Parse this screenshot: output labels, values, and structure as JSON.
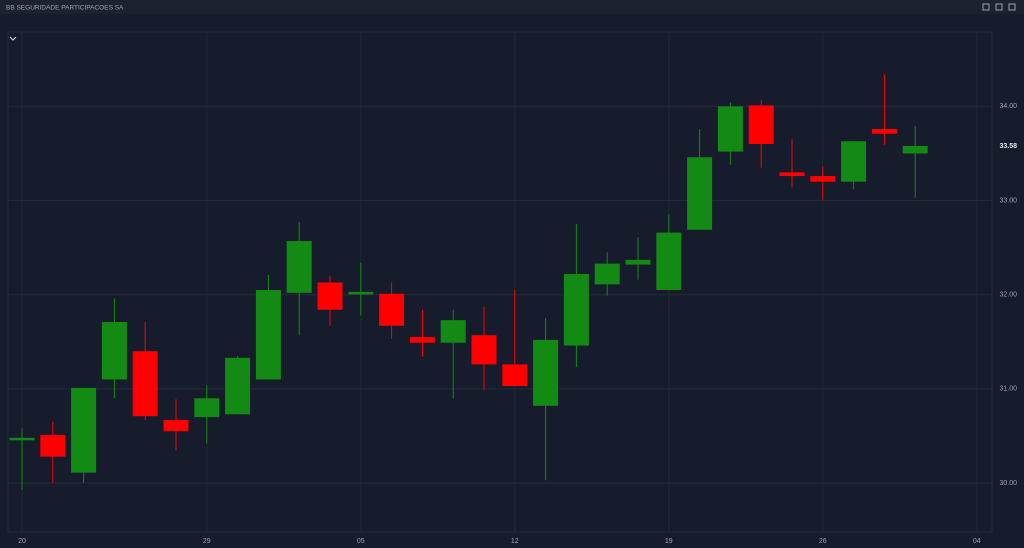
{
  "chart_data": {
    "type": "candlestick",
    "title": "BB SEGURIDADE PARTICIPACOES SA",
    "categories": [
      "20",
      null,
      null,
      null,
      null,
      null,
      "29",
      null,
      null,
      null,
      null,
      "05",
      null,
      null,
      null,
      null,
      "12",
      null,
      null,
      null,
      null,
      "19",
      null,
      null,
      null,
      null,
      "26",
      null,
      null,
      null,
      null,
      "04"
    ],
    "open": [
      30.48,
      30.51,
      30.11,
      31.1,
      31.4,
      30.67,
      30.7,
      30.73,
      31.1,
      32.02,
      32.13,
      32.01,
      32.01,
      31.55,
      31.49,
      31.57,
      31.26,
      30.82,
      31.46,
      32.11,
      32.32,
      32.05,
      32.69,
      33.52,
      34.01,
      33.3,
      33.26,
      33.2,
      33.76,
      33.5,
      null,
      null
    ],
    "high": [
      30.58,
      30.65,
      31.01,
      31.96,
      31.71,
      30.89,
      31.04,
      31.35,
      32.21,
      32.77,
      32.2,
      32.34,
      32.13,
      31.84,
      31.84,
      31.87,
      32.05,
      31.75,
      32.75,
      32.45,
      32.61,
      32.85,
      33.76,
      34.04,
      34.07,
      33.65,
      33.36,
      33.63,
      34.34,
      33.79,
      null,
      null
    ],
    "low": [
      29.93,
      30.0,
      30.0,
      30.9,
      30.67,
      30.35,
      30.42,
      30.73,
      31.1,
      31.57,
      31.67,
      31.78,
      31.53,
      31.34,
      30.9,
      30.99,
      31.03,
      30.03,
      31.23,
      31.99,
      32.16,
      32.05,
      32.69,
      33.38,
      33.35,
      33.14,
      33.01,
      33.12,
      33.59,
      33.03,
      null,
      null
    ],
    "close": [
      30.48,
      30.28,
      31.01,
      31.71,
      30.71,
      30.55,
      30.9,
      31.33,
      32.05,
      32.57,
      31.84,
      32.03,
      31.67,
      31.49,
      31.73,
      31.26,
      31.03,
      31.52,
      32.22,
      32.33,
      32.37,
      32.66,
      33.46,
      34.0,
      33.6,
      33.26,
      33.2,
      33.63,
      33.71,
      33.58,
      null,
      null
    ],
    "up_color": "#138a13",
    "down_color": "#ff0000",
    "ylim": [
      29.48,
      34.79
    ],
    "yticks": [
      {
        "value": 30,
        "label": "30.00"
      },
      {
        "value": 31,
        "label": "31.00"
      },
      {
        "value": 32,
        "label": "32.00"
      },
      {
        "value": 33,
        "label": "33.00"
      },
      {
        "value": 34,
        "label": "34.00"
      }
    ],
    "last_price": 33.58,
    "grid": true
  }
}
